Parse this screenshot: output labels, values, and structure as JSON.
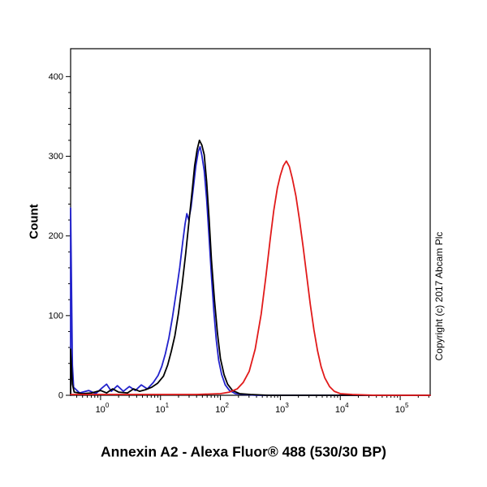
{
  "chart": {
    "title": "Annexin A2 - Alexa Fluor® 488 (530/30 BP)",
    "y_axis_title": "Count",
    "copyright": "Copyright (c) 2017 Abcam Plc"
  },
  "chart_data": {
    "type": "line",
    "title": "Annexin A2 - Alexa Fluor® 488 (530/30 BP)",
    "xlabel": "Annexin A2 - Alexa Fluor® 488 (530/30 BP)",
    "ylabel": "Count",
    "x_scale": "log10",
    "xlim_log10": [
      -0.5,
      5.5
    ],
    "ylim": [
      0,
      435
    ],
    "y_ticks": [
      0,
      100,
      200,
      300,
      400
    ],
    "y_minor_step": 20,
    "x_ticks_log10": [
      0,
      1,
      2,
      3,
      4,
      5
    ],
    "x_tick_labels": [
      "10^0",
      "10^1",
      "10^2",
      "10^3",
      "10^4",
      "10^5"
    ],
    "grid": false,
    "legend": "none",
    "series": [
      {
        "name": "blue",
        "color": "#2222cc",
        "points": [
          [
            -0.5,
            0
          ],
          [
            -0.5,
            235
          ],
          [
            -0.47,
            38
          ],
          [
            -0.45,
            10
          ],
          [
            -0.35,
            3
          ],
          [
            -0.2,
            6
          ],
          [
            -0.08,
            2
          ],
          [
            0.02,
            9
          ],
          [
            0.1,
            14
          ],
          [
            0.18,
            5
          ],
          [
            0.28,
            12
          ],
          [
            0.38,
            5
          ],
          [
            0.48,
            11
          ],
          [
            0.58,
            6
          ],
          [
            0.68,
            13
          ],
          [
            0.78,
            8
          ],
          [
            0.88,
            16
          ],
          [
            0.96,
            25
          ],
          [
            1.02,
            36
          ],
          [
            1.08,
            52
          ],
          [
            1.14,
            72
          ],
          [
            1.2,
            98
          ],
          [
            1.26,
            128
          ],
          [
            1.32,
            160
          ],
          [
            1.37,
            192
          ],
          [
            1.41,
            215
          ],
          [
            1.44,
            228
          ],
          [
            1.47,
            220
          ],
          [
            1.51,
            236
          ],
          [
            1.55,
            262
          ],
          [
            1.59,
            288
          ],
          [
            1.63,
            306
          ],
          [
            1.66,
            312
          ],
          [
            1.69,
            301
          ],
          [
            1.73,
            282
          ],
          [
            1.77,
            246
          ],
          [
            1.81,
            198
          ],
          [
            1.85,
            150
          ],
          [
            1.89,
            105
          ],
          [
            1.93,
            70
          ],
          [
            1.97,
            44
          ],
          [
            2.02,
            26
          ],
          [
            2.08,
            13
          ],
          [
            2.15,
            6
          ],
          [
            2.25,
            2
          ],
          [
            2.4,
            1
          ],
          [
            2.6,
            0
          ],
          [
            5.5,
            0
          ]
        ]
      },
      {
        "name": "black",
        "color": "#000000",
        "points": [
          [
            -0.5,
            0
          ],
          [
            -0.5,
            58
          ],
          [
            -0.47,
            14
          ],
          [
            -0.44,
            4
          ],
          [
            -0.3,
            2
          ],
          [
            -0.15,
            3
          ],
          [
            0.0,
            6
          ],
          [
            0.1,
            3
          ],
          [
            0.2,
            8
          ],
          [
            0.3,
            4
          ],
          [
            0.45,
            3
          ],
          [
            0.55,
            8
          ],
          [
            0.65,
            5
          ],
          [
            0.75,
            7
          ],
          [
            0.85,
            10
          ],
          [
            0.95,
            15
          ],
          [
            1.05,
            24
          ],
          [
            1.12,
            38
          ],
          [
            1.18,
            55
          ],
          [
            1.24,
            75
          ],
          [
            1.3,
            103
          ],
          [
            1.36,
            138
          ],
          [
            1.42,
            178
          ],
          [
            1.48,
            222
          ],
          [
            1.53,
            258
          ],
          [
            1.57,
            288
          ],
          [
            1.61,
            308
          ],
          [
            1.65,
            320
          ],
          [
            1.69,
            314
          ],
          [
            1.73,
            302
          ],
          [
            1.77,
            268
          ],
          [
            1.81,
            222
          ],
          [
            1.85,
            170
          ],
          [
            1.9,
            120
          ],
          [
            1.95,
            78
          ],
          [
            2.0,
            46
          ],
          [
            2.06,
            26
          ],
          [
            2.12,
            14
          ],
          [
            2.2,
            6
          ],
          [
            2.32,
            2
          ],
          [
            2.5,
            1
          ],
          [
            2.8,
            0
          ],
          [
            5.5,
            0
          ]
        ]
      },
      {
        "name": "red",
        "color": "#e11a1a",
        "points": [
          [
            -0.5,
            1
          ],
          [
            0.5,
            1
          ],
          [
            1.6,
            1
          ],
          [
            2.0,
            2
          ],
          [
            2.15,
            4
          ],
          [
            2.28,
            8
          ],
          [
            2.38,
            16
          ],
          [
            2.48,
            30
          ],
          [
            2.58,
            58
          ],
          [
            2.68,
            102
          ],
          [
            2.76,
            150
          ],
          [
            2.83,
            196
          ],
          [
            2.89,
            232
          ],
          [
            2.95,
            260
          ],
          [
            3.0,
            276
          ],
          [
            3.05,
            288
          ],
          [
            3.1,
            294
          ],
          [
            3.15,
            287
          ],
          [
            3.2,
            272
          ],
          [
            3.26,
            250
          ],
          [
            3.32,
            220
          ],
          [
            3.38,
            186
          ],
          [
            3.44,
            150
          ],
          [
            3.5,
            114
          ],
          [
            3.56,
            82
          ],
          [
            3.62,
            56
          ],
          [
            3.68,
            36
          ],
          [
            3.74,
            22
          ],
          [
            3.82,
            11
          ],
          [
            3.9,
            5
          ],
          [
            4.0,
            2
          ],
          [
            4.2,
            1
          ],
          [
            4.6,
            0
          ],
          [
            5.5,
            0
          ]
        ]
      }
    ]
  }
}
